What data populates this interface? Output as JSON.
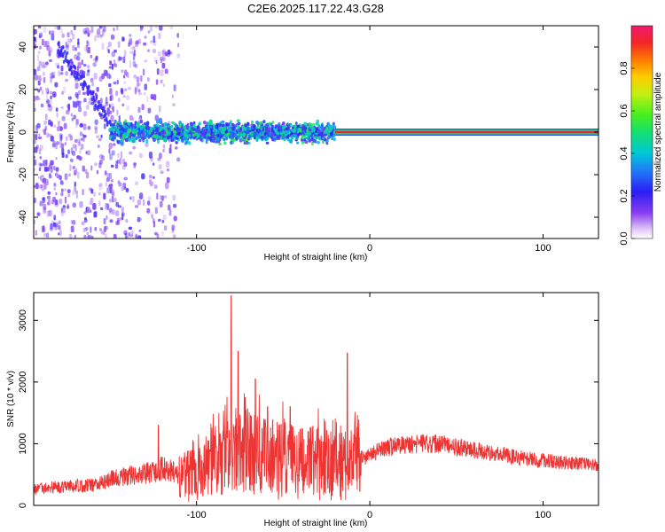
{
  "title": "C2E6.2025.117.22.43.G28",
  "chart_data": [
    {
      "type": "heatmap",
      "xlabel": "Height of straight line (km)",
      "ylabel": "Frequency (Hz)",
      "xlim": [
        -194,
        132
      ],
      "ylim": [
        -50,
        50
      ],
      "x_ticks": [
        -100,
        0,
        100
      ],
      "x_tick_labels": [
        "-100",
        "0",
        "100"
      ],
      "y_ticks": [
        -40,
        -20,
        0,
        20,
        40
      ],
      "y_tick_labels": [
        "-40",
        "-20",
        "0",
        "20",
        "40"
      ],
      "colorbar": {
        "label": "Normalized spectral amplitude",
        "range": [
          0,
          1
        ],
        "ticks": [
          0.0,
          0.2,
          0.4,
          0.6,
          0.8
        ],
        "tick_labels": [
          "0.0",
          "0.2",
          "0.4",
          "0.6",
          "0.8"
        ]
      },
      "features": [
        {
          "description": "diffuse noise",
          "x_range": [
            -194,
            -110
          ],
          "y_range": [
            -50,
            50
          ],
          "amplitude": 0.15
        },
        {
          "description": "descending Doppler streak",
          "x_start": -180,
          "y_start": 40,
          "x_end": -150,
          "y_end": 5,
          "amplitude": 0.2
        },
        {
          "description": "spread carrier",
          "x_range": [
            -150,
            -20
          ],
          "y_center": 0,
          "y_halfwidth": 5,
          "amplitude": 0.3
        },
        {
          "description": "narrow carrier line",
          "x_range": [
            -20,
            132
          ],
          "y_center": 0,
          "amplitude": 0.95
        }
      ]
    },
    {
      "type": "line",
      "xlabel": "Height of straight line (km)",
      "ylabel": "SNR (10 * v/v)",
      "xlim": [
        -194,
        132
      ],
      "ylim": [
        0,
        3450
      ],
      "x_ticks": [
        -100,
        0,
        100
      ],
      "x_tick_labels": [
        "-100",
        "0",
        "100"
      ],
      "y_ticks": [
        0,
        1000,
        2000,
        3000
      ],
      "y_tick_labels": [
        "0",
        "1000",
        "2000",
        "3000"
      ],
      "color": "#ee3333",
      "series": [
        {
          "x": [
            -194,
            -180,
            -165,
            -155,
            -150,
            -140,
            -130,
            -125,
            -120,
            -115,
            -110,
            -100,
            -95,
            -90,
            -85,
            -80,
            -75,
            -70,
            -65,
            -60,
            -55,
            -50,
            -45,
            -40,
            -35,
            -30,
            -25,
            -20,
            -15,
            -10,
            -5,
            0,
            5,
            10,
            15,
            20,
            30,
            40,
            50,
            60,
            70,
            80,
            90,
            100,
            110,
            120,
            132
          ],
          "y": [
            270,
            300,
            320,
            350,
            420,
            470,
            520,
            560,
            600,
            550,
            500,
            520,
            600,
            700,
            780,
            820,
            850,
            870,
            850,
            830,
            800,
            790,
            770,
            760,
            750,
            740,
            720,
            700,
            690,
            720,
            760,
            820,
            880,
            930,
            960,
            980,
            1000,
            990,
            950,
            900,
            850,
            800,
            760,
            730,
            700,
            680,
            660
          ],
          "spikes": [
            {
              "x": -80,
              "y": 3400
            },
            {
              "x": -76,
              "y": 2500
            },
            {
              "x": -72,
              "y": 1750
            },
            {
              "x": -66,
              "y": 2050
            },
            {
              "x": -59,
              "y": 1600
            },
            {
              "x": -46,
              "y": 1600
            },
            {
              "x": -13,
              "y": 2470
            },
            {
              "x": -122,
              "y": 1300
            }
          ]
        }
      ]
    }
  ]
}
